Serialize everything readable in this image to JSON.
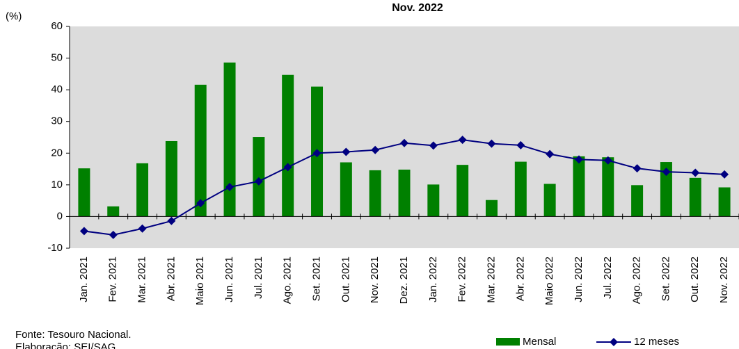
{
  "chart_data": {
    "type": "bar_line",
    "title": "Nov. 2022",
    "y_label": "(%)",
    "categories": [
      "Jan. 2021",
      "Fev. 2021",
      "Mar. 2021",
      "Abr. 2021",
      "Maio 2021",
      "Jun. 2021",
      "Jul. 2021",
      "Ago. 2021",
      "Set. 2021",
      "Out. 2021",
      "Nov. 2021",
      "Dez. 2021",
      "Jan. 2022",
      "Fev. 2022",
      "Mar. 2022",
      "Abr. 2022",
      "Maio 2022",
      "Jun. 2022",
      "Jul. 2022",
      "Ago. 2022",
      "Set. 2022",
      "Out. 2022",
      "Nov. 2022"
    ],
    "series": [
      {
        "name": "Mensal",
        "type": "bar",
        "color": "#008000",
        "values": [
          15.2,
          3.2,
          16.8,
          23.8,
          41.6,
          48.6,
          25.1,
          44.7,
          41.0,
          17.1,
          14.6,
          14.8,
          10.1,
          16.3,
          5.2,
          17.3,
          10.3,
          19.0,
          18.7,
          9.9,
          17.2,
          12.2,
          9.2
        ]
      },
      {
        "name": "12 meses",
        "type": "line",
        "color": "#000080",
        "values": [
          -4.6,
          -5.8,
          -3.8,
          -1.4,
          4.2,
          9.3,
          11.1,
          15.6,
          20.0,
          20.4,
          21.0,
          23.2,
          22.4,
          24.2,
          23.0,
          22.5,
          19.7,
          18.0,
          17.7,
          15.2,
          14.1,
          13.8,
          13.3
        ]
      }
    ],
    "ylim": [
      -10,
      60
    ],
    "yticks": [
      -10,
      0,
      10,
      20,
      30,
      40,
      50,
      60
    ],
    "notes": [
      "Fonte: Tesouro  Nacional.",
      "Elaboração: SEI/SAG."
    ]
  }
}
